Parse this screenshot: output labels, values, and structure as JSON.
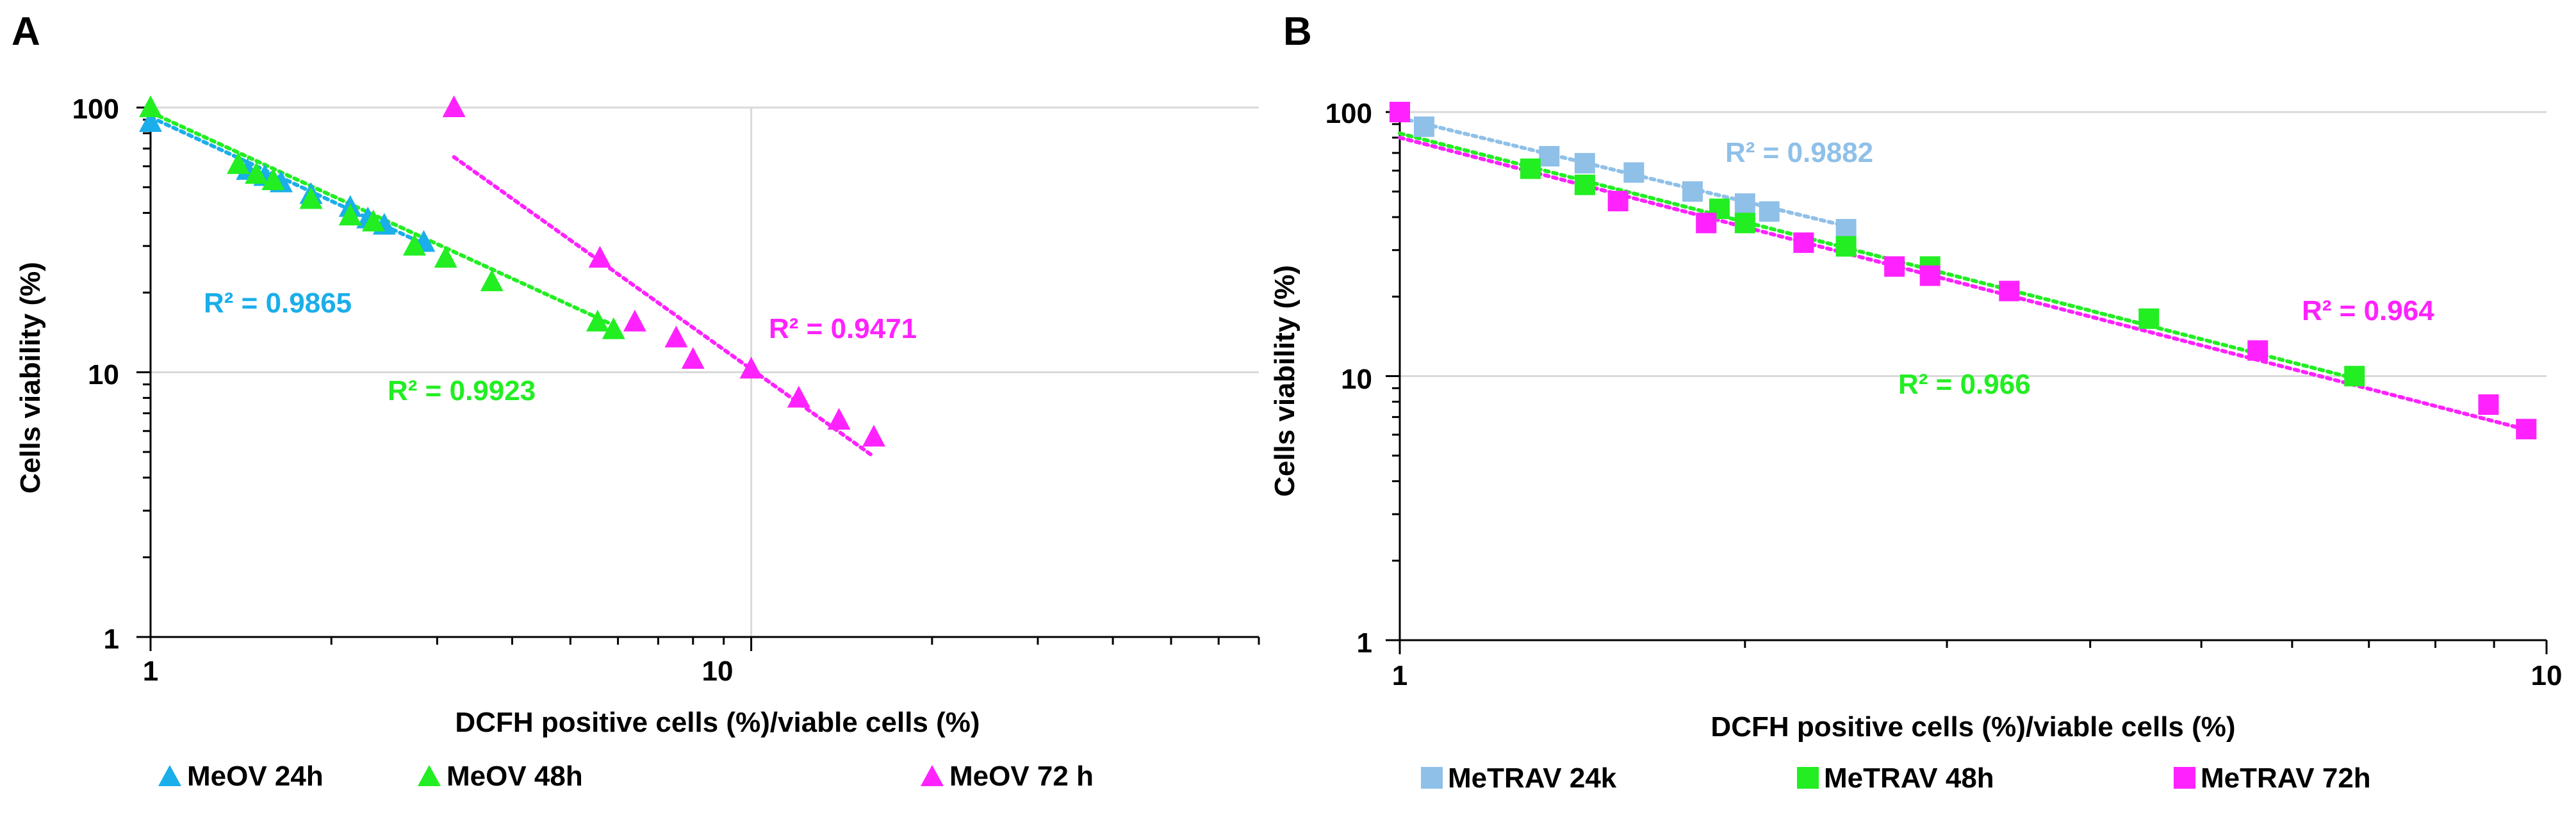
{
  "colors": {
    "cyan": "#1aaeea",
    "green": "#22ee22",
    "magenta": "#ff22ff",
    "lightblue": "#8fc0e8",
    "brightgreen": "#22ee22",
    "pink": "#ff22ff",
    "grid": "#d9d9d9",
    "axis": "#000000"
  },
  "chart_data": [
    {
      "panel": "A",
      "type": "scatter",
      "xscale": "log",
      "yscale": "log",
      "xlim": [
        1,
        70
      ],
      "ylim": [
        1,
        100
      ],
      "xlabel": "DCFH positive cells (%)/viable  cells (%)",
      "ylabel": "Cells viability (%)",
      "xticks": [
        {
          "v": 1,
          "label": "1"
        },
        {
          "v": 10,
          "label": "10"
        }
      ],
      "yticks": [
        {
          "v": 1,
          "label": "1"
        },
        {
          "v": 10,
          "label": "10"
        },
        {
          "v": 100,
          "label": "100"
        }
      ],
      "series": [
        {
          "name": "MeOV 24h",
          "marker": "triangle",
          "color": "cyan",
          "points": [
            [
              1.0,
              88
            ],
            [
              1.45,
              58
            ],
            [
              1.55,
              55
            ],
            [
              1.65,
              52
            ],
            [
              1.85,
              47
            ],
            [
              2.15,
              42
            ],
            [
              2.3,
              38
            ],
            [
              2.45,
              36
            ],
            [
              2.85,
              31
            ]
          ],
          "trend": [
            [
              1.0,
              92
            ],
            [
              2.9,
              30
            ]
          ],
          "r2": "R² = 0.9865"
        },
        {
          "name": "MeOV 48h",
          "marker": "triangle",
          "color": "green",
          "points": [
            [
              1.0,
              100
            ],
            [
              1.4,
              61
            ],
            [
              1.5,
              56
            ],
            [
              1.6,
              53
            ],
            [
              1.85,
              45
            ],
            [
              2.15,
              39
            ],
            [
              2.35,
              37
            ],
            [
              2.75,
              30
            ],
            [
              3.1,
              27
            ],
            [
              3.7,
              22
            ],
            [
              5.55,
              15.5
            ],
            [
              5.9,
              14.5
            ]
          ],
          "trend": [
            [
              1.0,
              96
            ],
            [
              6.0,
              14.8
            ]
          ],
          "r2": "R² = 0.9923"
        },
        {
          "name": "MeOV 72 h",
          "marker": "triangle",
          "color": "magenta",
          "points": [
            [
              3.2,
              100
            ],
            [
              5.6,
              27
            ],
            [
              6.4,
              15.5
            ],
            [
              7.5,
              13.5
            ],
            [
              8.0,
              11.2
            ],
            [
              10.0,
              10.3
            ],
            [
              12.0,
              8.0
            ],
            [
              14.0,
              6.6
            ],
            [
              16.0,
              5.7
            ]
          ],
          "trend": [
            [
              3.2,
              65
            ],
            [
              16.0,
              4.8
            ]
          ],
          "r2": "R² = 0.9471"
        }
      ]
    },
    {
      "panel": "B",
      "type": "scatter",
      "xscale": "log",
      "yscale": "log",
      "xlim": [
        1,
        10
      ],
      "ylim": [
        1,
        100
      ],
      "xlabel": "DCFH positive cells (%)/viable  cells (%)",
      "ylabel": "Cells viability (%)",
      "xticks": [
        {
          "v": 1,
          "label": "1"
        },
        {
          "v": 10,
          "label": "10"
        }
      ],
      "yticks": [
        {
          "v": 1,
          "label": "1"
        },
        {
          "v": 10,
          "label": "10"
        },
        {
          "v": 100,
          "label": "100"
        }
      ],
      "series": [
        {
          "name": "MeTRAV 24k",
          "marker": "square",
          "color": "lightblue",
          "points": [
            [
              1.05,
              88
            ],
            [
              1.35,
              68
            ],
            [
              1.45,
              64
            ],
            [
              1.6,
              59
            ],
            [
              1.8,
              50
            ],
            [
              2.0,
              45
            ],
            [
              2.1,
              42
            ],
            [
              2.45,
              36
            ]
          ],
          "trend": [
            [
              1.0,
              95
            ],
            [
              2.45,
              37
            ]
          ],
          "r2": "R² = 0.9882"
        },
        {
          "name": "MeTRAV 48h",
          "marker": "square",
          "color": "brightgreen",
          "points": [
            [
              1.0,
              100
            ],
            [
              1.3,
              61
            ],
            [
              1.45,
              53
            ],
            [
              1.9,
              43
            ],
            [
              2.0,
              38
            ],
            [
              2.45,
              31
            ],
            [
              2.9,
              26
            ],
            [
              4.5,
              16.5
            ],
            [
              6.8,
              10.0
            ]
          ],
          "trend": [
            [
              1.0,
              83
            ],
            [
              6.8,
              9.8
            ]
          ],
          "r2": "R² = 0.966"
        },
        {
          "name": "MeTRAV 72h",
          "marker": "square",
          "color": "pink",
          "points": [
            [
              1.0,
              100
            ],
            [
              1.55,
              46
            ],
            [
              1.85,
              38
            ],
            [
              2.25,
              32
            ],
            [
              2.7,
              26
            ],
            [
              2.9,
              24
            ],
            [
              3.4,
              21
            ],
            [
              5.6,
              12.5
            ],
            [
              8.9,
              7.8
            ],
            [
              9.6,
              6.3
            ]
          ],
          "trend": [
            [
              1.0,
              80
            ],
            [
              9.7,
              6.2
            ]
          ],
          "r2": "R² = 0.964"
        }
      ]
    }
  ],
  "panels": {
    "a": {
      "letter": "A",
      "xlabel": "DCFH positive cells (%)/viable  cells (%)",
      "ylabel": "Cells viability (%)",
      "tick_1": "1",
      "tick_10": "10",
      "tick_100": "100",
      "r2_24": "R² = 0.9865",
      "r2_48": "R² = 0.9923",
      "r2_72": "R² = 0.9471",
      "legend": [
        "MeOV 24h",
        "MeOV 48h",
        "MeOV 72 h"
      ]
    },
    "b": {
      "letter": "B",
      "xlabel": "DCFH positive cells (%)/viable  cells (%)",
      "ylabel": "Cells viability (%)",
      "tick_1": "1",
      "tick_10": "10",
      "tick_100": "100",
      "r2_24": "R² = 0.9882",
      "r2_48": "R² = 0.966",
      "r2_72": "R² = 0.964",
      "legend": [
        "MeTRAV 24k",
        "MeTRAV 48h",
        "MeTRAV 72h"
      ]
    }
  }
}
